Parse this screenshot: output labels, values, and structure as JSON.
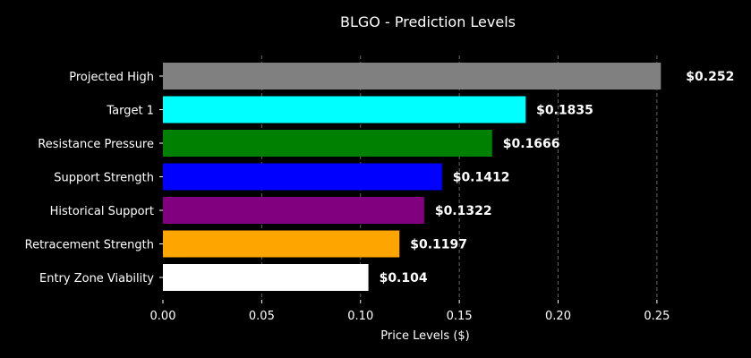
{
  "chart_data": {
    "type": "bar",
    "orientation": "horizontal",
    "title": "BLGO - Prediction Levels",
    "xlabel": "Price Levels ($)",
    "ylabel": "",
    "xlim": [
      0,
      0.265
    ],
    "grid": "vertical dashed",
    "background": "#000000",
    "text_color": "#ffffff",
    "categories": [
      "Entry Zone Viability",
      "Retracement Strength",
      "Historical Support",
      "Support Strength",
      "Resistance Pressure",
      "Target 1",
      "Projected High"
    ],
    "values": [
      0.104,
      0.1197,
      0.1322,
      0.1412,
      0.1666,
      0.1835,
      0.252
    ],
    "value_labels": [
      "$0.104",
      "$0.1197",
      "$0.1322",
      "$0.1412",
      "$0.1666",
      "$0.1835",
      "$0.252"
    ],
    "colors": [
      "#ffffff",
      "#ffa500",
      "#800080",
      "#0000ff",
      "#008000",
      "#00ffff",
      "#808080"
    ],
    "xticks": [
      0.0,
      0.05,
      0.1,
      0.15,
      0.2,
      0.25
    ],
    "xtick_labels": [
      "0.00",
      "0.05",
      "0.10",
      "0.15",
      "0.20",
      "0.25"
    ]
  }
}
